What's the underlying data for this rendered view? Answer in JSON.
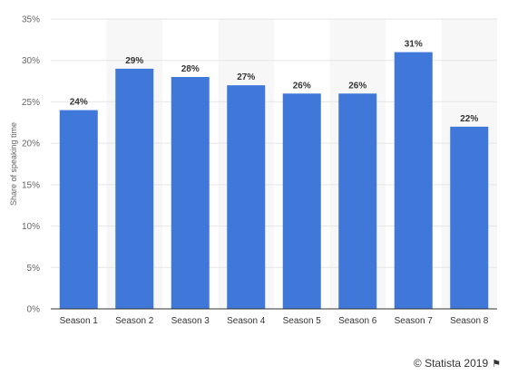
{
  "chart_data": {
    "type": "bar",
    "categories": [
      "Season 1",
      "Season 2",
      "Season 3",
      "Season 4",
      "Season 5",
      "Season 6",
      "Season 7",
      "Season 8"
    ],
    "values": [
      24,
      29,
      28,
      27,
      26,
      26,
      31,
      22
    ],
    "data_labels": [
      "24%",
      "29%",
      "28%",
      "27%",
      "26%",
      "26%",
      "31%",
      "22%"
    ],
    "ylabel": "Share of speaking time",
    "ylim": [
      0,
      35
    ],
    "yticks": [
      0,
      5,
      10,
      15,
      20,
      25,
      30,
      35
    ],
    "ytick_labels": [
      "0%",
      "5%",
      "10%",
      "15%",
      "20%",
      "25%",
      "30%",
      "35%"
    ],
    "bar_color": "#3f78d9",
    "alt_band_color": "#f7f7f7",
    "grid": true
  },
  "footer": {
    "credit": "© Statista 2019",
    "flag_icon": "flag-icon"
  }
}
